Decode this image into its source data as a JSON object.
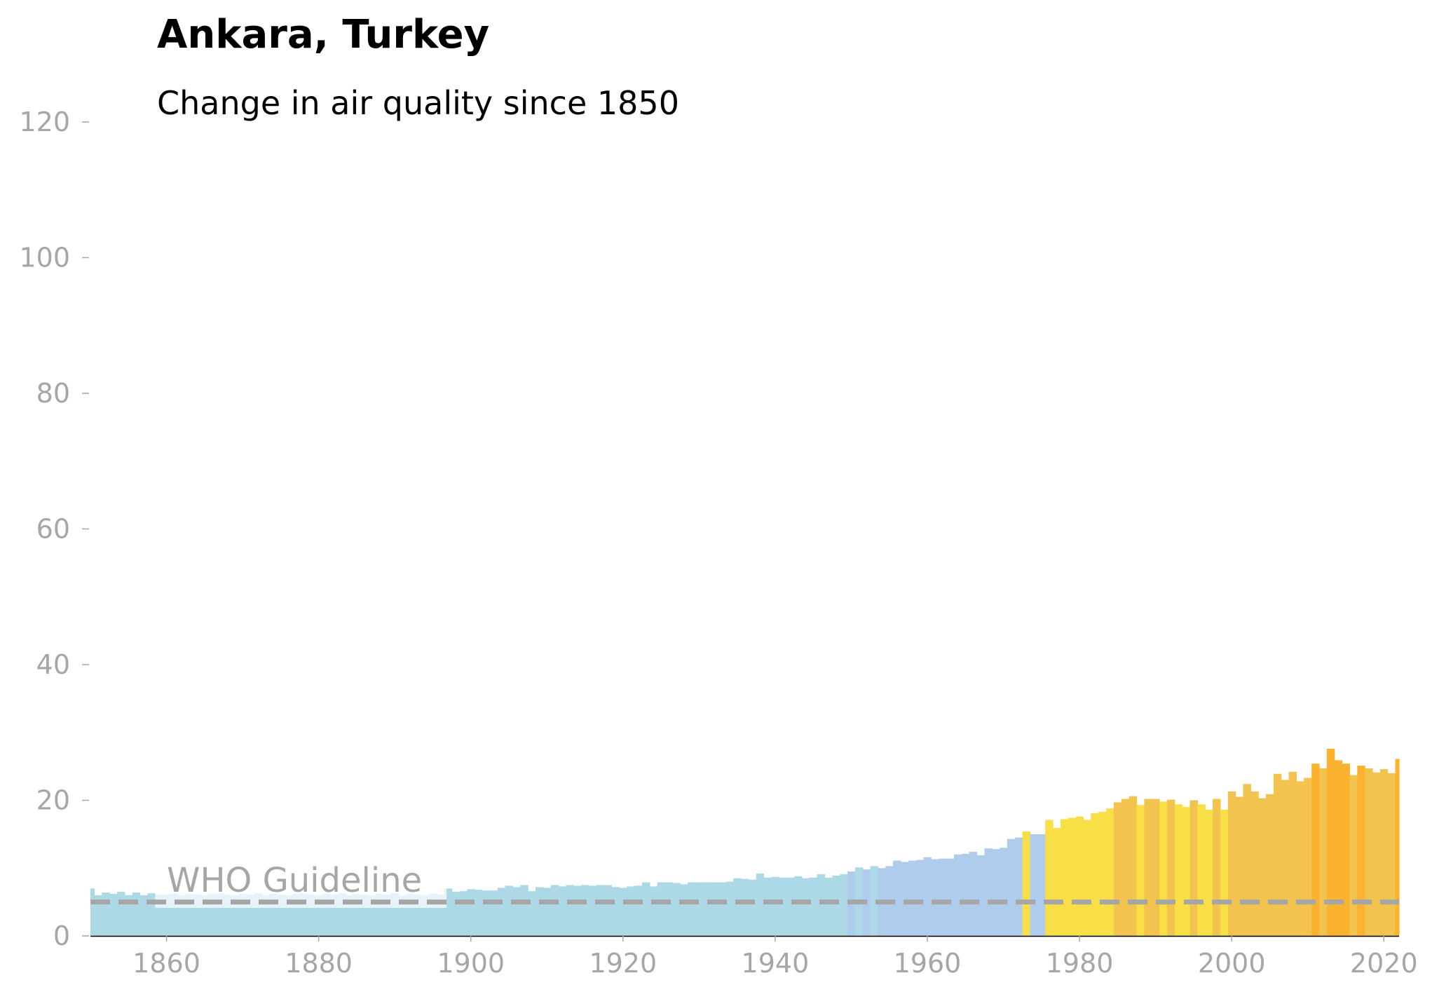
{
  "chart_data": {
    "type": "bar",
    "title": "Ankara, Turkey",
    "subtitle": "Change in air quality since 1850",
    "xlabel": "",
    "ylabel": "",
    "xlim": [
      1850,
      2022
    ],
    "ylim": [
      0,
      120
    ],
    "x_ticks": [
      1860,
      1880,
      1900,
      1920,
      1940,
      1960,
      1980,
      2000,
      2020
    ],
    "y_ticks": [
      0,
      20,
      40,
      60,
      80,
      100,
      120
    ],
    "grid": false,
    "legend": "none",
    "guideline": {
      "label": "WHO Guideline",
      "value": 5,
      "color": "#a6a6a6",
      "style": "dashed"
    },
    "colors": {
      "light_blue": "#add8e6",
      "medium_blue": "#b0cced",
      "yellow": "#f7df45",
      "gold": "#f2c44f",
      "orange": "#fbb22f"
    },
    "years": [
      1850,
      1851,
      1852,
      1853,
      1854,
      1855,
      1856,
      1857,
      1858,
      1859,
      1860,
      1861,
      1862,
      1863,
      1864,
      1865,
      1866,
      1867,
      1868,
      1869,
      1870,
      1871,
      1872,
      1873,
      1874,
      1875,
      1876,
      1877,
      1878,
      1879,
      1880,
      1881,
      1882,
      1883,
      1884,
      1885,
      1886,
      1887,
      1888,
      1889,
      1890,
      1891,
      1892,
      1893,
      1894,
      1895,
      1896,
      1897,
      1898,
      1899,
      1900,
      1901,
      1902,
      1903,
      1904,
      1905,
      1906,
      1907,
      1908,
      1909,
      1910,
      1911,
      1912,
      1913,
      1914,
      1915,
      1916,
      1917,
      1918,
      1919,
      1920,
      1921,
      1922,
      1923,
      1924,
      1925,
      1926,
      1927,
      1928,
      1929,
      1930,
      1931,
      1932,
      1933,
      1934,
      1935,
      1936,
      1937,
      1938,
      1939,
      1940,
      1941,
      1942,
      1943,
      1944,
      1945,
      1946,
      1947,
      1948,
      1949,
      1950,
      1951,
      1952,
      1953,
      1954,
      1955,
      1956,
      1957,
      1958,
      1959,
      1960,
      1961,
      1962,
      1963,
      1964,
      1965,
      1966,
      1967,
      1968,
      1969,
      1970,
      1971,
      1972,
      1973,
      1974,
      1975,
      1976,
      1977,
      1978,
      1979,
      1980,
      1981,
      1982,
      1983,
      1984,
      1985,
      1986,
      1987,
      1988,
      1989,
      1990,
      1991,
      1992,
      1993,
      1994,
      1995,
      1996,
      1997,
      1998,
      1999,
      2000,
      2001,
      2002,
      2003,
      2004,
      2005,
      2006,
      2007,
      2008,
      2009,
      2010,
      2011,
      2012,
      2013,
      2014,
      2015,
      2016,
      2017,
      2018,
      2019,
      2020,
      2021,
      2022
    ],
    "values": [
      7.0,
      6.0,
      6.4,
      6.2,
      6.5,
      6.0,
      6.4,
      6.0,
      6.3,
      6.1,
      6.1,
      6.2,
      6.0,
      6.2,
      6.1,
      6.0,
      6.2,
      6.3,
      6.1,
      6.0,
      6.2,
      6.1,
      6.3,
      6.0,
      6.2,
      6.1,
      6.0,
      6.2,
      6.3,
      6.1,
      6.0,
      6.2,
      6.1,
      6.3,
      6.0,
      6.2,
      6.1,
      6.0,
      6.2,
      6.1,
      6.3,
      6.0,
      6.2,
      6.1,
      6.0,
      6.2,
      6.1,
      7.0,
      6.5,
      6.6,
      6.9,
      6.8,
      6.7,
      6.7,
      7.1,
      7.4,
      7.2,
      7.5,
      6.6,
      7.2,
      7.1,
      7.5,
      7.3,
      7.5,
      7.4,
      7.5,
      7.4,
      7.5,
      7.5,
      7.2,
      7.1,
      7.3,
      7.4,
      7.9,
      7.3,
      7.9,
      7.9,
      7.8,
      7.6,
      7.9,
      7.9,
      7.9,
      7.9,
      7.9,
      8.0,
      8.5,
      8.4,
      8.3,
      9.2,
      8.6,
      8.7,
      8.6,
      8.6,
      8.8,
      8.5,
      8.6,
      9.1,
      8.6,
      8.9,
      9.1,
      9.5,
      10.1,
      9.8,
      10.3,
      10.0,
      10.3,
      11.1,
      10.9,
      11.1,
      11.2,
      11.6,
      11.3,
      11.4,
      11.4,
      12.0,
      12.1,
      12.4,
      11.9,
      12.9,
      12.8,
      13.0,
      14.3,
      14.5,
      15.4,
      15.0,
      15.0,
      17.1,
      15.9,
      17.2,
      17.4,
      17.6,
      17.1,
      18.1,
      18.3,
      18.8,
      19.7,
      20.2,
      20.6,
      19.3,
      20.2,
      20.2,
      19.8,
      20.1,
      19.4,
      19.0,
      20.0,
      19.4,
      18.6,
      20.2,
      18.6,
      21.3,
      20.5,
      22.4,
      21.3,
      20.3,
      20.9,
      23.9,
      23.0,
      24.2,
      22.8,
      23.3,
      25.4,
      24.7,
      27.6,
      25.9,
      25.4,
      23.7,
      25.1,
      24.7,
      24.1,
      24.6,
      24.0,
      26.1
    ],
    "bar_colors": [
      "light_blue",
      "light_blue",
      "light_blue",
      "light_blue",
      "light_blue",
      "light_blue",
      "light_blue",
      "light_blue",
      "light_blue",
      "light_blue",
      "light_blue",
      "light_blue",
      "light_blue",
      "light_blue",
      "light_blue",
      "light_blue",
      "light_blue",
      "light_blue",
      "light_blue",
      "light_blue",
      "light_blue",
      "light_blue",
      "light_blue",
      "light_blue",
      "light_blue",
      "light_blue",
      "light_blue",
      "light_blue",
      "light_blue",
      "light_blue",
      "light_blue",
      "light_blue",
      "light_blue",
      "light_blue",
      "light_blue",
      "light_blue",
      "light_blue",
      "light_blue",
      "light_blue",
      "light_blue",
      "light_blue",
      "light_blue",
      "light_blue",
      "light_blue",
      "light_blue",
      "light_blue",
      "light_blue",
      "light_blue",
      "light_blue",
      "light_blue",
      "light_blue",
      "light_blue",
      "light_blue",
      "light_blue",
      "light_blue",
      "light_blue",
      "light_blue",
      "light_blue",
      "light_blue",
      "light_blue",
      "light_blue",
      "light_blue",
      "light_blue",
      "light_blue",
      "light_blue",
      "light_blue",
      "light_blue",
      "light_blue",
      "light_blue",
      "light_blue",
      "light_blue",
      "light_blue",
      "light_blue",
      "light_blue",
      "light_blue",
      "light_blue",
      "light_blue",
      "light_blue",
      "light_blue",
      "light_blue",
      "light_blue",
      "light_blue",
      "light_blue",
      "light_blue",
      "light_blue",
      "light_blue",
      "light_blue",
      "light_blue",
      "light_blue",
      "light_blue",
      "light_blue",
      "light_blue",
      "light_blue",
      "light_blue",
      "light_blue",
      "light_blue",
      "light_blue",
      "light_blue",
      "light_blue",
      "light_blue",
      "medium_blue",
      "light_blue",
      "medium_blue",
      "light_blue",
      "medium_blue",
      "medium_blue",
      "medium_blue",
      "medium_blue",
      "medium_blue",
      "medium_blue",
      "medium_blue",
      "medium_blue",
      "medium_blue",
      "medium_blue",
      "medium_blue",
      "medium_blue",
      "medium_blue",
      "medium_blue",
      "medium_blue",
      "medium_blue",
      "medium_blue",
      "medium_blue",
      "medium_blue",
      "yellow",
      "medium_blue",
      "medium_blue",
      "yellow",
      "yellow",
      "yellow",
      "yellow",
      "yellow",
      "yellow",
      "yellow",
      "yellow",
      "yellow",
      "gold",
      "gold",
      "gold",
      "yellow",
      "gold",
      "gold",
      "yellow",
      "gold",
      "yellow",
      "yellow",
      "gold",
      "yellow",
      "yellow",
      "gold",
      "yellow",
      "gold",
      "gold",
      "gold",
      "gold",
      "gold",
      "gold",
      "gold",
      "gold",
      "gold",
      "gold",
      "gold",
      "orange",
      "gold",
      "orange",
      "orange",
      "orange",
      "gold",
      "orange",
      "gold",
      "gold",
      "gold",
      "gold",
      "orange"
    ]
  }
}
